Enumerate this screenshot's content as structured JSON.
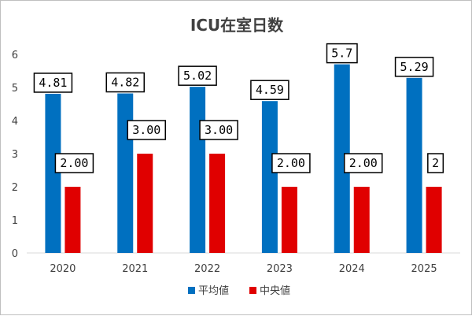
{
  "chart_data": {
    "type": "bar",
    "title": "ICU在室日数",
    "xlabel": "",
    "ylabel": "",
    "categories": [
      "2020",
      "2021",
      "2022",
      "2023",
      "2024",
      "2025"
    ],
    "series": [
      {
        "name": "平均値",
        "color": "#0070C0",
        "values": [
          4.81,
          4.82,
          5.02,
          4.59,
          5.7,
          5.29
        ],
        "labels": [
          "4.81",
          "4.82",
          "5.02",
          "4.59",
          "5.7",
          "5.29"
        ]
      },
      {
        "name": "中央値",
        "color": "#E00000",
        "values": [
          2,
          3,
          3,
          2,
          2,
          2
        ],
        "labels": [
          "2.00",
          "3.00",
          "3.00",
          "2.00",
          "2.00",
          "2"
        ]
      }
    ],
    "ylim": [
      0,
      6
    ],
    "yticks": [
      0,
      1,
      2,
      3,
      4,
      5,
      6
    ],
    "grid": false,
    "legend_position": "bottom"
  }
}
